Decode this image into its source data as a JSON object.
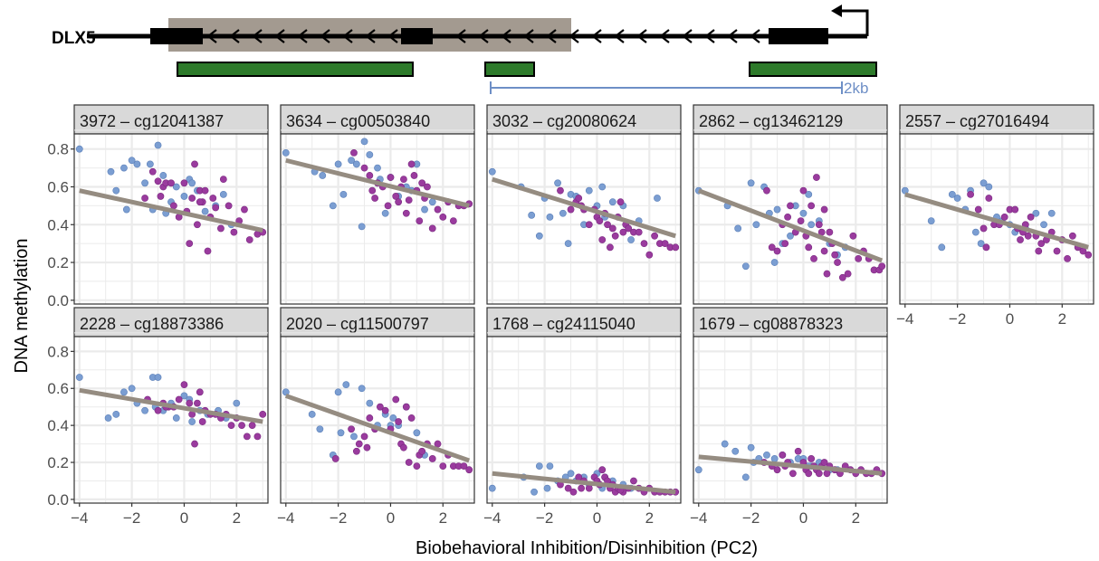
{
  "gene_track": {
    "gene_name": "DLX5",
    "scale_label": "2kb",
    "colors": {
      "shaded_region": "#a39a90",
      "cpg_boxes": "#2d7a2a",
      "scale_bar": "#6e8fc6",
      "gene_line": "#000000"
    }
  },
  "axes": {
    "xlabel": "Biobehavioral Inhibition/Disinhibition (PC2)",
    "ylabel": "DNA methylation"
  },
  "colors": {
    "group_blue": "#7b9ed2",
    "group_purple": "#9a3b9e",
    "fit_line": "#958c81",
    "strip_bg": "#d9d9d9",
    "grid": "#ebebeb"
  },
  "chart_data": {
    "type": "scatter",
    "xlim": [
      -4.2,
      3.2
    ],
    "ylim": [
      -0.02,
      0.88
    ],
    "xticks": [
      -4,
      -2,
      0,
      2
    ],
    "yticks": [
      0.0,
      0.2,
      0.4,
      0.6,
      0.8
    ],
    "xtick_labels": [
      "−4",
      "−2",
      "0",
      "2"
    ],
    "ytick_labels": [
      "0.0",
      "0.2",
      "0.4",
      "0.6",
      "0.8"
    ],
    "grid": true,
    "panels": [
      {
        "label": "3972 – cg12041387",
        "fit": [
          [
            -4,
            0.58
          ],
          [
            3,
            0.37
          ]
        ],
        "blue_x": [
          -4.0,
          -2.8,
          -2.6,
          -2.2,
          -2.0,
          -1.8,
          -1.5,
          -1.3,
          -1.0,
          -0.8,
          -0.5,
          -0.3,
          0.0,
          0.2,
          0.5,
          0.8,
          1.2,
          1.5,
          1.8,
          -1.2,
          0.3,
          -2.3,
          -0.7
        ],
        "blue_y": [
          0.8,
          0.68,
          0.58,
          0.48,
          0.74,
          0.72,
          0.62,
          0.72,
          0.82,
          0.66,
          0.52,
          0.6,
          0.55,
          0.64,
          0.58,
          0.47,
          0.5,
          0.56,
          0.4,
          0.48,
          0.62,
          0.7,
          0.46
        ],
        "purple_x": [
          -1.5,
          -1.2,
          -1.0,
          -0.8,
          -0.7,
          -0.5,
          -0.4,
          -0.2,
          0.0,
          0.1,
          0.3,
          0.4,
          0.5,
          0.6,
          0.7,
          0.8,
          0.9,
          1.0,
          1.1,
          1.2,
          1.4,
          1.5,
          1.7,
          1.9,
          2.1,
          2.3,
          2.5,
          2.8,
          3.0,
          -0.9,
          0.2,
          0.6
        ],
        "purple_y": [
          0.54,
          0.68,
          0.63,
          0.6,
          0.62,
          0.62,
          0.5,
          0.44,
          0.62,
          0.47,
          0.54,
          0.72,
          0.4,
          0.58,
          0.52,
          0.58,
          0.26,
          0.44,
          0.54,
          0.49,
          0.38,
          0.64,
          0.5,
          0.36,
          0.42,
          0.48,
          0.32,
          0.35,
          0.36,
          0.55,
          0.3,
          0.52
        ]
      },
      {
        "label": "3634 – cg00503840",
        "fit": [
          [
            -4,
            0.74
          ],
          [
            3,
            0.5
          ]
        ],
        "blue_x": [
          -4.0,
          -2.9,
          -2.6,
          -2.2,
          -2.0,
          -1.8,
          -1.5,
          -1.3,
          -1.0,
          -0.8,
          -0.5,
          -0.2,
          0.0,
          0.3,
          0.6,
          1.0,
          1.3,
          1.6,
          -1.1,
          -0.4,
          0.8
        ],
        "blue_y": [
          0.78,
          0.68,
          0.66,
          0.5,
          0.72,
          0.56,
          0.74,
          0.72,
          0.84,
          0.77,
          0.7,
          0.46,
          0.65,
          0.55,
          0.6,
          0.72,
          0.48,
          0.52,
          0.39,
          0.64,
          0.58
        ],
        "purple_x": [
          -1.4,
          -1.0,
          -0.8,
          -0.7,
          -0.5,
          -0.3,
          -0.1,
          0.0,
          0.2,
          0.3,
          0.4,
          0.5,
          0.7,
          0.8,
          0.9,
          1.0,
          1.1,
          1.3,
          1.4,
          1.6,
          1.8,
          2.0,
          2.2,
          2.4,
          2.6,
          2.8,
          3.0,
          -0.6,
          0.6,
          1.2
        ],
        "purple_y": [
          0.78,
          0.7,
          0.66,
          0.58,
          0.62,
          0.6,
          0.5,
          0.65,
          0.55,
          0.52,
          0.6,
          0.64,
          0.53,
          0.72,
          0.66,
          0.58,
          0.42,
          0.54,
          0.6,
          0.38,
          0.48,
          0.44,
          0.52,
          0.42,
          0.5,
          0.5,
          0.51,
          0.54,
          0.46,
          0.62
        ]
      },
      {
        "label": "3032 – cg20080624",
        "fit": [
          [
            -4,
            0.64
          ],
          [
            3,
            0.34
          ]
        ],
        "blue_x": [
          -4.0,
          -2.9,
          -2.5,
          -2.2,
          -2.0,
          -1.8,
          -1.5,
          -1.3,
          -1.0,
          -0.8,
          -0.5,
          -0.3,
          0.0,
          0.3,
          0.6,
          1.0,
          1.3,
          1.6,
          2.3,
          -1.1,
          0.2
        ],
        "blue_y": [
          0.68,
          0.6,
          0.45,
          0.34,
          0.54,
          0.44,
          0.62,
          0.46,
          0.56,
          0.55,
          0.4,
          0.58,
          0.5,
          0.44,
          0.52,
          0.5,
          0.32,
          0.42,
          0.54,
          0.3,
          0.6
        ],
        "purple_x": [
          -1.4,
          -1.0,
          -0.8,
          -0.6,
          -0.5,
          -0.3,
          -0.1,
          0.0,
          0.1,
          0.2,
          0.4,
          0.5,
          0.6,
          0.7,
          0.8,
          0.9,
          1.0,
          1.1,
          1.2,
          1.4,
          1.6,
          1.8,
          2.0,
          2.2,
          2.4,
          2.6,
          2.8,
          3.0,
          -0.7,
          0.3
        ],
        "purple_y": [
          0.58,
          0.48,
          0.52,
          0.5,
          0.48,
          0.4,
          0.48,
          0.44,
          0.42,
          0.32,
          0.4,
          0.28,
          0.38,
          0.34,
          0.44,
          0.52,
          0.36,
          0.4,
          0.38,
          0.36,
          0.36,
          0.3,
          0.24,
          0.34,
          0.3,
          0.3,
          0.28,
          0.28,
          0.54,
          0.46
        ]
      },
      {
        "label": "2862 – cg13462129",
        "fit": [
          [
            -4,
            0.58
          ],
          [
            3,
            0.21
          ]
        ],
        "blue_x": [
          -4.0,
          -2.9,
          -2.5,
          -2.2,
          -2.0,
          -1.8,
          -1.5,
          -1.3,
          -1.0,
          -0.8,
          -0.5,
          -0.3,
          0.0,
          0.3,
          0.6,
          1.0,
          1.3,
          1.6,
          -1.1,
          0.2
        ],
        "blue_y": [
          0.58,
          0.5,
          0.38,
          0.18,
          0.62,
          0.4,
          0.6,
          0.46,
          0.48,
          0.3,
          0.34,
          0.5,
          0.46,
          0.4,
          0.42,
          0.3,
          0.24,
          0.28,
          0.2,
          0.56
        ],
        "purple_x": [
          -1.4,
          -1.2,
          -1.0,
          -0.8,
          -0.6,
          -0.5,
          -0.3,
          -0.1,
          0.0,
          0.1,
          0.2,
          0.3,
          0.5,
          0.6,
          0.7,
          0.8,
          0.9,
          1.0,
          1.1,
          1.2,
          1.3,
          1.5,
          1.7,
          1.9,
          2.1,
          2.3,
          2.5,
          2.7,
          2.9,
          3.0,
          -0.7,
          0.4,
          0.8
        ],
        "purple_y": [
          0.58,
          0.28,
          0.26,
          0.4,
          0.44,
          0.5,
          0.36,
          0.42,
          0.58,
          0.34,
          0.28,
          0.5,
          0.65,
          0.4,
          0.36,
          0.26,
          0.14,
          0.36,
          0.3,
          0.24,
          0.2,
          0.12,
          0.14,
          0.34,
          0.22,
          0.26,
          0.22,
          0.16,
          0.16,
          0.18,
          0.3,
          0.22,
          0.48
        ]
      },
      {
        "label": "2557 – cg27016494",
        "fit": [
          [
            -4,
            0.56
          ],
          [
            3,
            0.28
          ]
        ],
        "blue_x": [
          -4.0,
          -3.0,
          -2.6,
          -2.2,
          -2.0,
          -1.7,
          -1.5,
          -1.3,
          -1.0,
          -0.8,
          -0.5,
          -0.3,
          0.0,
          0.3,
          0.6,
          1.0,
          1.3,
          1.6,
          -1.1,
          0.2
        ],
        "blue_y": [
          0.58,
          0.42,
          0.28,
          0.56,
          0.54,
          0.48,
          0.58,
          0.36,
          0.62,
          0.6,
          0.44,
          0.42,
          0.4,
          0.38,
          0.38,
          0.46,
          0.4,
          0.46,
          0.3,
          0.36
        ],
        "purple_x": [
          -1.5,
          -1.2,
          -1.0,
          -0.8,
          -0.6,
          -0.4,
          -0.2,
          0.0,
          0.2,
          0.3,
          0.4,
          0.6,
          0.7,
          0.8,
          1.0,
          1.2,
          1.4,
          1.6,
          1.8,
          2.0,
          2.2,
          2.4,
          2.6,
          2.8,
          3.0,
          -0.9,
          0.5,
          1.1
        ],
        "purple_y": [
          0.56,
          0.48,
          0.38,
          0.54,
          0.4,
          0.4,
          0.44,
          0.48,
          0.48,
          0.38,
          0.32,
          0.4,
          0.34,
          0.44,
          0.34,
          0.3,
          0.32,
          0.36,
          0.26,
          0.32,
          0.22,
          0.34,
          0.28,
          0.26,
          0.24,
          0.28,
          0.36,
          0.26
        ]
      },
      {
        "label": "2228 – cg18873386",
        "fit": [
          [
            -4,
            0.59
          ],
          [
            3,
            0.42
          ]
        ],
        "blue_x": [
          -4.0,
          -2.9,
          -2.6,
          -2.3,
          -2.0,
          -1.8,
          -1.5,
          -1.2,
          -1.0,
          -0.8,
          -0.5,
          -0.3,
          0.0,
          0.3,
          0.6,
          0.9,
          1.3,
          1.6,
          2.0,
          -1.1,
          0.2
        ],
        "blue_y": [
          0.66,
          0.44,
          0.46,
          0.58,
          0.6,
          0.52,
          0.48,
          0.66,
          0.66,
          0.48,
          0.52,
          0.44,
          0.56,
          0.42,
          0.48,
          0.46,
          0.48,
          0.44,
          0.52,
          0.5,
          0.54
        ],
        "purple_x": [
          -1.4,
          -1.0,
          -0.8,
          -0.6,
          -0.4,
          -0.2,
          0.0,
          0.2,
          0.3,
          0.4,
          0.5,
          0.6,
          0.8,
          1.0,
          1.2,
          1.4,
          1.6,
          1.8,
          2.0,
          2.2,
          2.4,
          2.6,
          2.8,
          3.0,
          -0.7,
          0.7
        ],
        "purple_y": [
          0.54,
          0.48,
          0.52,
          0.5,
          0.5,
          0.54,
          0.62,
          0.52,
          0.46,
          0.3,
          0.52,
          0.58,
          0.48,
          0.46,
          0.46,
          0.44,
          0.46,
          0.4,
          0.44,
          0.4,
          0.34,
          0.4,
          0.34,
          0.46,
          0.5,
          0.42
        ]
      },
      {
        "label": "2020 – cg11500797",
        "fit": [
          [
            -4,
            0.56
          ],
          [
            3,
            0.21
          ]
        ],
        "blue_x": [
          -4.0,
          -3.0,
          -2.7,
          -2.2,
          -2.0,
          -1.7,
          -1.4,
          -1.1,
          -0.8,
          -0.5,
          -0.2,
          0.0,
          0.3,
          0.6,
          1.0,
          1.3,
          -1.9,
          0.1
        ],
        "blue_y": [
          0.58,
          0.46,
          0.38,
          0.24,
          0.58,
          0.62,
          0.34,
          0.6,
          0.52,
          0.4,
          0.46,
          0.4,
          0.4,
          0.5,
          0.36,
          0.24,
          0.36,
          0.44
        ],
        "purple_x": [
          -2.1,
          -1.5,
          -1.3,
          -1.2,
          -1.0,
          -0.8,
          -0.6,
          -0.4,
          -0.2,
          0.0,
          0.2,
          0.3,
          0.4,
          0.5,
          0.6,
          0.8,
          1.0,
          1.1,
          1.2,
          1.4,
          1.6,
          1.8,
          2.0,
          2.2,
          2.4,
          2.6,
          2.8,
          3.0,
          -0.9,
          0.7
        ],
        "purple_y": [
          0.22,
          0.38,
          0.26,
          0.3,
          0.34,
          0.44,
          0.38,
          0.5,
          0.48,
          0.38,
          0.54,
          0.42,
          0.3,
          0.28,
          0.5,
          0.44,
          0.18,
          0.24,
          0.26,
          0.3,
          0.22,
          0.3,
          0.18,
          0.24,
          0.18,
          0.18,
          0.18,
          0.16,
          0.28,
          0.2
        ]
      },
      {
        "label": "1768 – cg24115040",
        "fit": [
          [
            -4,
            0.14
          ],
          [
            3,
            0.04
          ]
        ],
        "blue_x": [
          -4.0,
          -2.8,
          -2.4,
          -2.2,
          -1.8,
          -1.5,
          -1.2,
          -1.0,
          -0.8,
          -0.5,
          -0.3,
          0.0,
          0.3,
          0.6,
          1.0,
          1.3,
          -1.9,
          0.2
        ],
        "blue_y": [
          0.06,
          0.12,
          0.04,
          0.18,
          0.18,
          0.1,
          0.12,
          0.14,
          0.1,
          0.12,
          0.08,
          0.14,
          0.12,
          0.1,
          0.08,
          0.06,
          0.06,
          0.06
        ],
        "purple_x": [
          -1.4,
          -1.1,
          -0.9,
          -0.7,
          -0.5,
          -0.3,
          -0.1,
          0.0,
          0.1,
          0.2,
          0.3,
          0.4,
          0.5,
          0.6,
          0.7,
          0.8,
          1.0,
          1.2,
          1.4,
          1.6,
          1.8,
          2.0,
          2.2,
          2.4,
          2.6,
          2.8,
          3.0,
          -0.6,
          0.9
        ],
        "purple_y": [
          0.08,
          0.06,
          0.04,
          0.12,
          0.1,
          0.06,
          0.12,
          0.1,
          0.08,
          0.16,
          0.12,
          0.1,
          0.06,
          0.08,
          0.04,
          0.06,
          0.04,
          0.06,
          0.1,
          0.06,
          0.04,
          0.06,
          0.04,
          0.04,
          0.04,
          0.04,
          0.04,
          0.06,
          0.05
        ]
      },
      {
        "label": "1679 – cg08878323",
        "fit": [
          [
            -4,
            0.23
          ],
          [
            3,
            0.14
          ]
        ],
        "blue_x": [
          -4.0,
          -3.0,
          -2.6,
          -2.2,
          -2.0,
          -1.7,
          -1.4,
          -1.1,
          -0.8,
          -0.5,
          -0.2,
          0.0,
          0.3,
          0.6,
          1.0,
          1.3,
          -1.9,
          0.2
        ],
        "blue_y": [
          0.16,
          0.3,
          0.26,
          0.12,
          0.28,
          0.22,
          0.24,
          0.22,
          0.24,
          0.2,
          0.22,
          0.22,
          0.18,
          0.2,
          0.16,
          0.16,
          0.2,
          0.18
        ],
        "purple_x": [
          -1.5,
          -1.2,
          -1.0,
          -0.8,
          -0.6,
          -0.4,
          -0.2,
          0.0,
          0.1,
          0.2,
          0.3,
          0.4,
          0.5,
          0.6,
          0.7,
          0.8,
          1.0,
          1.2,
          1.4,
          1.6,
          1.8,
          2.0,
          2.2,
          2.4,
          2.6,
          2.8,
          3.0,
          -0.7,
          0.9
        ],
        "purple_y": [
          0.2,
          0.18,
          0.16,
          0.24,
          0.2,
          0.14,
          0.26,
          0.2,
          0.16,
          0.14,
          0.22,
          0.18,
          0.16,
          0.14,
          0.18,
          0.2,
          0.18,
          0.16,
          0.14,
          0.18,
          0.16,
          0.14,
          0.16,
          0.14,
          0.14,
          0.16,
          0.14,
          0.18,
          0.14
        ]
      }
    ]
  }
}
